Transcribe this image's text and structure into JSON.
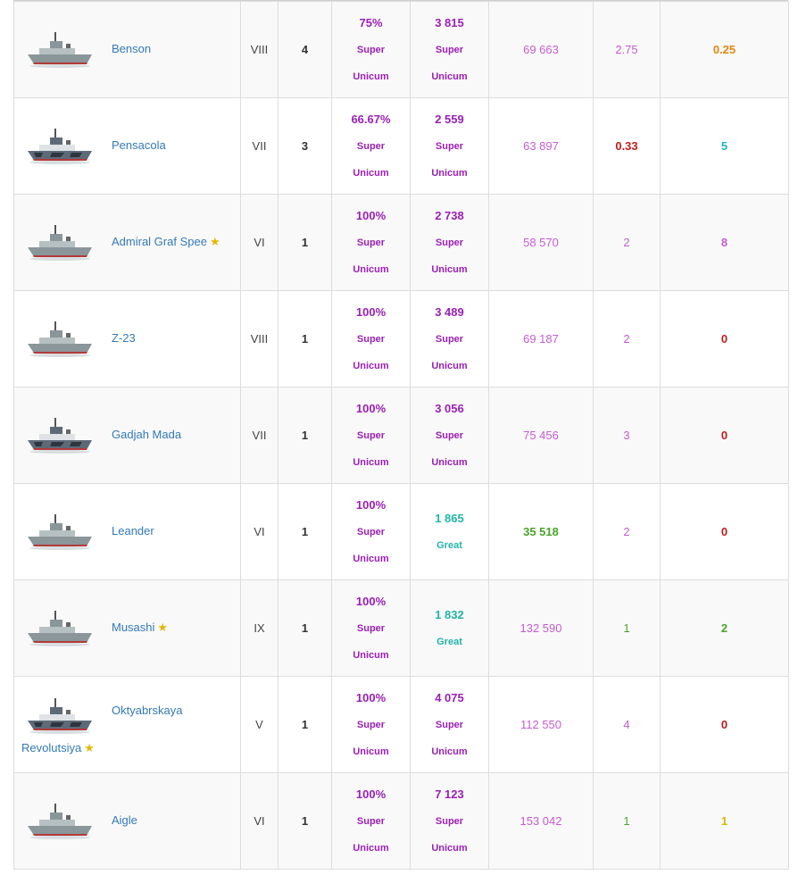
{
  "colors": {
    "super": "#9b1fb5",
    "great": "#20b4a6",
    "magenta": "#c55cd2",
    "green": "#4aa32a",
    "red": "#c11c1c",
    "orange": "#e3860e",
    "yellow": "#d8b400",
    "teal": "#1fb1c4",
    "link": "#337ab7",
    "star": "#e6b800"
  },
  "icons": {
    "favorite": "star-icon"
  },
  "rows": [
    {
      "ship": "Benson",
      "favorite": false,
      "tier": "VIII",
      "battles": "4",
      "win_rate": "75%",
      "win_rate_label": "Super",
      "win_rate_label2": "Unicum",
      "avg_damage": "3 815",
      "avg_damage_label": "Super",
      "avg_damage_label2": "Unicum",
      "avg_xp": "69 663",
      "frags": "2.75",
      "survival": "0.25"
    },
    {
      "ship": "Pensacola",
      "favorite": false,
      "tier": "VII",
      "battles": "3",
      "win_rate": "66.67%",
      "win_rate_label": "Super",
      "win_rate_label2": "Unicum",
      "avg_damage": "2 559",
      "avg_damage_label": "Super",
      "avg_damage_label2": "Unicum",
      "avg_xp": "63 897",
      "frags": "0.33",
      "survival": "5"
    },
    {
      "ship": "Admiral Graf Spee",
      "favorite": true,
      "tier": "VI",
      "battles": "1",
      "win_rate": "100%",
      "win_rate_label": "Super",
      "win_rate_label2": "Unicum",
      "avg_damage": "2 738",
      "avg_damage_label": "Super",
      "avg_damage_label2": "Unicum",
      "avg_xp": "58 570",
      "frags": "2",
      "survival": "8"
    },
    {
      "ship": "Z-23",
      "favorite": false,
      "tier": "VIII",
      "battles": "1",
      "win_rate": "100%",
      "win_rate_label": "Super",
      "win_rate_label2": "Unicum",
      "avg_damage": "3 489",
      "avg_damage_label": "Super",
      "avg_damage_label2": "Unicum",
      "avg_xp": "69 187",
      "frags": "2",
      "survival": "0"
    },
    {
      "ship": "Gadjah Mada",
      "favorite": false,
      "tier": "VII",
      "battles": "1",
      "win_rate": "100%",
      "win_rate_label": "Super",
      "win_rate_label2": "Unicum",
      "avg_damage": "3 056",
      "avg_damage_label": "Super",
      "avg_damage_label2": "Unicum",
      "avg_xp": "75 456",
      "frags": "3",
      "survival": "0"
    },
    {
      "ship": "Leander",
      "favorite": false,
      "tier": "VI",
      "battles": "1",
      "win_rate": "100%",
      "win_rate_label": "Super",
      "win_rate_label2": "Unicum",
      "avg_damage": "1 865",
      "avg_damage_label": "Great",
      "avg_damage_label2": "",
      "avg_xp": "35 518",
      "frags": "2",
      "survival": "0"
    },
    {
      "ship": "Musashi",
      "favorite": true,
      "tier": "IX",
      "battles": "1",
      "win_rate": "100%",
      "win_rate_label": "Super",
      "win_rate_label2": "Unicum",
      "avg_damage": "1 832",
      "avg_damage_label": "Great",
      "avg_damage_label2": "",
      "avg_xp": "132 590",
      "frags": "1",
      "survival": "2"
    },
    {
      "ship": "Oktyabrskaya",
      "ship_line2": "Revolutsiya",
      "favorite": true,
      "tier": "V",
      "battles": "1",
      "win_rate": "100%",
      "win_rate_label": "Super",
      "win_rate_label2": "Unicum",
      "avg_damage": "4 075",
      "avg_damage_label": "Super",
      "avg_damage_label2": "Unicum",
      "avg_xp": "112 550",
      "frags": "4",
      "survival": "0"
    },
    {
      "ship": "Aigle",
      "favorite": false,
      "tier": "VI",
      "battles": "1",
      "win_rate": "100%",
      "win_rate_label": "Super",
      "win_rate_label2": "Unicum",
      "avg_damage": "7 123",
      "avg_damage_label": "Super",
      "avg_damage_label2": "Unicum",
      "avg_xp": "153 042",
      "frags": "1",
      "survival": "1"
    }
  ]
}
